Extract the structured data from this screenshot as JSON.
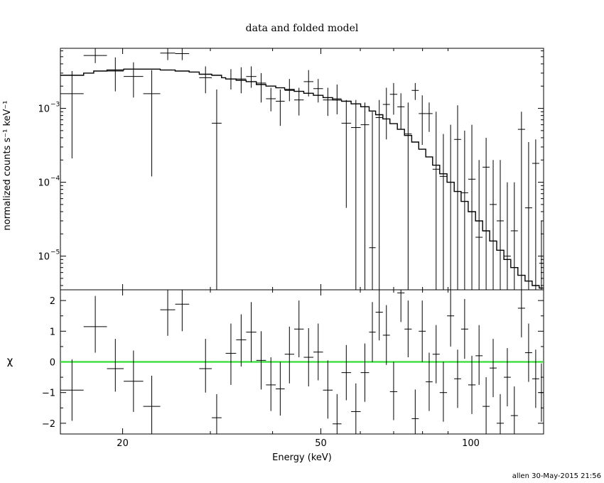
{
  "chart_data": {
    "type": "scatter",
    "title": "data and folded model",
    "xlabel": "Energy (keV)",
    "xscale": "log",
    "xlim": [
      15.0,
      140.0
    ],
    "x_ticks": [
      20,
      50,
      100
    ],
    "footer": "allen 30-May-2015 21:56",
    "panels": [
      {
        "id": "top",
        "ylabel": "normalized counts s⁻¹ keV⁻¹",
        "yscale": "log",
        "ylim": [
          3.5e-06,
          0.0065
        ],
        "y_ticks": [
          {
            "value": 0.001,
            "mantissa": "10",
            "exp": "−3"
          },
          {
            "value": 0.0001,
            "mantissa": "10",
            "exp": "−4"
          },
          {
            "value": 1e-05,
            "mantissa": "10",
            "exp": "−5"
          }
        ],
        "data_points": [
          {
            "x0": 15.0,
            "x1": 16.7,
            "y": 0.00158,
            "ylo": 0.00021,
            "yhi": 0.0032
          },
          {
            "x0": 16.7,
            "x1": 18.6,
            "y": 0.0052,
            "ylo": 0.0041,
            "yhi": 0.0065
          },
          {
            "x0": 18.6,
            "x1": 20.1,
            "y": 0.0032,
            "ylo": 0.0017,
            "yhi": 0.0049
          },
          {
            "x0": 20.1,
            "x1": 22.0,
            "y": 0.0027,
            "ylo": 0.0014,
            "yhi": 0.0042
          },
          {
            "x0": 22.0,
            "x1": 23.8,
            "y": 0.00158,
            "ylo": 0.00012,
            "yhi": 0.0033
          },
          {
            "x0": 23.8,
            "x1": 25.5,
            "y": 0.0056,
            "ylo": 0.0045,
            "yhi": 0.0065
          },
          {
            "x0": 25.5,
            "x1": 27.2,
            "y": 0.0055,
            "ylo": 0.0045,
            "yhi": 0.0065
          },
          {
            "x0": 28.5,
            "x1": 30.2,
            "y": 0.0026,
            "ylo": 0.0016,
            "yhi": 0.0037
          },
          {
            "x0": 30.2,
            "x1": 31.6,
            "y": 0.00063,
            "ylo": 3.5e-06,
            "yhi": 0.0018
          },
          {
            "x0": 32.2,
            "x1": 33.8,
            "y": 0.0025,
            "ylo": 0.0018,
            "yhi": 0.0034
          },
          {
            "x0": 33.8,
            "x1": 35.4,
            "y": 0.0025,
            "ylo": 0.0016,
            "yhi": 0.0036
          },
          {
            "x0": 35.4,
            "x1": 37.1,
            "y": 0.0027,
            "ylo": 0.0019,
            "yhi": 0.0037
          },
          {
            "x0": 37.1,
            "x1": 38.8,
            "y": 0.0022,
            "ylo": 0.0012,
            "yhi": 0.003
          },
          {
            "x0": 38.8,
            "x1": 40.6,
            "y": 0.00135,
            "ylo": 0.00091,
            "yhi": 0.0019
          },
          {
            "x0": 40.6,
            "x1": 42.3,
            "y": 0.00125,
            "ylo": 0.00058,
            "yhi": 0.0018
          },
          {
            "x0": 42.3,
            "x1": 44.2,
            "y": 0.00175,
            "ylo": 0.00125,
            "yhi": 0.0025
          },
          {
            "x0": 44.2,
            "x1": 46.2,
            "y": 0.0013,
            "ylo": 0.0008,
            "yhi": 0.0019
          },
          {
            "x0": 46.2,
            "x1": 48.3,
            "y": 0.0023,
            "ylo": 0.00145,
            "yhi": 0.0033
          },
          {
            "x0": 48.3,
            "x1": 50.5,
            "y": 0.00185,
            "ylo": 0.0012,
            "yhi": 0.0025
          },
          {
            "x0": 50.5,
            "x1": 52.8,
            "y": 0.0013,
            "ylo": 0.00079,
            "yhi": 0.0019
          },
          {
            "x0": 52.8,
            "x1": 55.0,
            "y": 0.00135,
            "ylo": 0.00083,
            "yhi": 0.0021
          },
          {
            "x0": 55.0,
            "x1": 57.5,
            "y": 0.00063,
            "ylo": 4.5e-05,
            "yhi": 0.0013
          },
          {
            "x0": 57.5,
            "x1": 60.1,
            "y": 0.00055,
            "ylo": 3.5e-06,
            "yhi": 0.0013
          },
          {
            "x0": 60.1,
            "x1": 62.5,
            "y": 0.0006,
            "ylo": 3.5e-06,
            "yhi": 0.0012
          },
          {
            "x0": 62.5,
            "x1": 64.4,
            "y": 1.3e-05,
            "ylo": 3.5e-06,
            "yhi": 0.0009
          },
          {
            "x0": 64.4,
            "x1": 66.6,
            "y": 0.00075,
            "ylo": 3.5e-06,
            "yhi": 0.0013
          },
          {
            "x0": 66.6,
            "x1": 68.8,
            "y": 0.00113,
            "ylo": 0.00038,
            "yhi": 0.0019
          },
          {
            "x0": 68.8,
            "x1": 71.2,
            "y": 0.00155,
            "ylo": 0.00082,
            "yhi": 0.0022
          },
          {
            "x0": 71.2,
            "x1": 73.6,
            "y": 0.00105,
            "ylo": 0.00052,
            "yhi": 0.0016
          },
          {
            "x0": 73.6,
            "x1": 76.1,
            "y": 0.00045,
            "ylo": 3.5e-06,
            "yhi": 0.0012
          },
          {
            "x0": 76.1,
            "x1": 78.6,
            "y": 0.00175,
            "ylo": 0.0013,
            "yhi": 0.0022
          },
          {
            "x0": 78.6,
            "x1": 81.2,
            "y": 0.00085,
            "ylo": 0.00032,
            "yhi": 0.0015
          },
          {
            "x0": 81.2,
            "x1": 83.8,
            "y": 0.00085,
            "ylo": 0.00048,
            "yhi": 0.0012
          },
          {
            "x0": 83.8,
            "x1": 86.6,
            "y": 0.00015,
            "ylo": 3.5e-06,
            "yhi": 0.0009
          },
          {
            "x0": 86.6,
            "x1": 89.6,
            "y": 0.00012,
            "ylo": 3.5e-06,
            "yhi": 0.00045
          },
          {
            "x0": 89.6,
            "x1": 92.6,
            "y": 0.0001,
            "ylo": 3.5e-06,
            "yhi": 0.0006
          },
          {
            "x0": 92.6,
            "x1": 95.6,
            "y": 0.00038,
            "ylo": 3.5e-06,
            "yhi": 0.0011
          },
          {
            "x0": 95.6,
            "x1": 98.8,
            "y": 7.2e-05,
            "ylo": 3.5e-06,
            "yhi": 0.0005
          },
          {
            "x0": 98.8,
            "x1": 102.2,
            "y": 0.00011,
            "ylo": 3.5e-06,
            "yhi": 0.0006
          },
          {
            "x0": 102.2,
            "x1": 105.6,
            "y": 1.8e-05,
            "ylo": 3.5e-06,
            "yhi": 0.0002
          },
          {
            "x0": 105.6,
            "x1": 109.1,
            "y": 0.00016,
            "ylo": 3.5e-06,
            "yhi": 0.0004
          },
          {
            "x0": 109.1,
            "x1": 112.7,
            "y": 5e-05,
            "ylo": 3.5e-06,
            "yhi": 0.0002
          },
          {
            "x0": 112.7,
            "x1": 116.5,
            "y": 3e-05,
            "ylo": 3.5e-06,
            "yhi": 0.0002
          },
          {
            "x0": 116.5,
            "x1": 120.3,
            "y": 1e-05,
            "ylo": 3.5e-06,
            "yhi": 0.0001
          },
          {
            "x0": 120.3,
            "x1": 124.3,
            "y": 2.2e-05,
            "ylo": 3.5e-06,
            "yhi": 0.0001
          },
          {
            "x0": 124.3,
            "x1": 128.5,
            "y": 0.00052,
            "ylo": 3.5e-06,
            "yhi": 0.0009
          },
          {
            "x0": 128.5,
            "x1": 132.8,
            "y": 4.5e-05,
            "ylo": 3.5e-06,
            "yhi": 0.00035
          },
          {
            "x0": 132.8,
            "x1": 137.2,
            "y": 0.00018,
            "ylo": 3.5e-06,
            "yhi": 0.00038
          },
          {
            "x0": 137.2,
            "x1": 140.0,
            "y": 8e-06,
            "ylo": 3.5e-06,
            "yhi": 3e-05
          }
        ],
        "model_x": [
          15.0,
          16.7,
          17.5,
          18.6,
          20.1,
          22.0,
          23.8,
          25.5,
          27.2,
          28.5,
          30.2,
          31.6,
          32.2,
          33.8,
          35.4,
          37.1,
          38.8,
          40.6,
          42.3,
          44.2,
          46.2,
          48.3,
          50.5,
          52.8,
          55.0,
          57.5,
          60.1,
          62.5,
          64.4,
          66.6,
          68.8,
          71.2,
          73.6,
          76.1,
          78.6,
          81.2,
          83.8,
          86.6,
          89.6,
          92.6,
          95.6,
          98.8,
          102.2,
          105.6,
          109.1,
          112.7,
          116.5,
          120.3,
          124.3,
          128.5,
          132.8,
          137.2,
          140.0
        ],
        "model_y": [
          0.0028,
          0.003,
          0.0032,
          0.0033,
          0.0034,
          0.0034,
          0.0033,
          0.0032,
          0.0031,
          0.0029,
          0.0028,
          0.0026,
          0.0025,
          0.0024,
          0.0023,
          0.0021,
          0.002,
          0.0019,
          0.0018,
          0.0017,
          0.0016,
          0.0015,
          0.0014,
          0.0013,
          0.00125,
          0.00115,
          0.00105,
          0.00092,
          0.00082,
          0.00072,
          0.00062,
          0.00052,
          0.00043,
          0.00035,
          0.00028,
          0.00022,
          0.00017,
          0.00013,
          0.0001,
          7.5e-05,
          5.5e-05,
          4e-05,
          3e-05,
          2.2e-05,
          1.6e-05,
          1.2e-05,
          9e-06,
          7e-06,
          5.5e-06,
          4.6e-06,
          4e-06,
          3.7e-06
        ]
      },
      {
        "id": "bottom",
        "ylabel": "χ",
        "yscale": "linear",
        "ylim": [
          -2.35,
          2.35
        ],
        "y_ticks": [
          {
            "value": 2,
            "label": "2"
          },
          {
            "value": 1,
            "label": "1"
          },
          {
            "value": 0,
            "label": "0"
          },
          {
            "value": -1,
            "label": "−1"
          },
          {
            "value": -2,
            "label": "−2"
          }
        ],
        "zero_line_color": "#33dd33",
        "residuals": [
          {
            "x0": 15.0,
            "x1": 16.7,
            "y": -0.92,
            "ylo": -1.92,
            "yhi": 0.08
          },
          {
            "x0": 16.7,
            "x1": 18.6,
            "y": 1.15,
            "ylo": 0.3,
            "yhi": 2.15
          },
          {
            "x0": 18.6,
            "x1": 20.1,
            "y": -0.22,
            "ylo": -0.97,
            "yhi": 0.75
          },
          {
            "x0": 20.1,
            "x1": 22.0,
            "y": -0.63,
            "ylo": -1.63,
            "yhi": 0.37
          },
          {
            "x0": 22.0,
            "x1": 23.8,
            "y": -1.45,
            "ylo": -2.35,
            "yhi": -0.45
          },
          {
            "x0": 23.8,
            "x1": 25.5,
            "y": 1.7,
            "ylo": 0.85,
            "yhi": 2.35
          },
          {
            "x0": 25.5,
            "x1": 27.2,
            "y": 1.88,
            "ylo": 1.0,
            "yhi": 2.35
          },
          {
            "x0": 28.5,
            "x1": 30.2,
            "y": -0.22,
            "ylo": -1.0,
            "yhi": 0.75
          },
          {
            "x0": 30.2,
            "x1": 31.6,
            "y": -1.82,
            "ylo": -2.35,
            "yhi": -1.05
          },
          {
            "x0": 32.2,
            "x1": 33.8,
            "y": 0.28,
            "ylo": -0.75,
            "yhi": 1.25
          },
          {
            "x0": 33.8,
            "x1": 35.4,
            "y": 0.72,
            "ylo": -0.15,
            "yhi": 1.55
          },
          {
            "x0": 35.4,
            "x1": 37.1,
            "y": 0.97,
            "ylo": 0.0,
            "yhi": 1.95
          },
          {
            "x0": 37.1,
            "x1": 38.8,
            "y": 0.05,
            "ylo": -0.9,
            "yhi": 1.0
          },
          {
            "x0": 38.8,
            "x1": 40.6,
            "y": -0.75,
            "ylo": -1.6,
            "yhi": 0.15
          },
          {
            "x0": 40.6,
            "x1": 42.3,
            "y": -0.88,
            "ylo": -1.75,
            "yhi": 0.0
          },
          {
            "x0": 42.3,
            "x1": 44.2,
            "y": 0.25,
            "ylo": -0.7,
            "yhi": 1.15
          },
          {
            "x0": 44.2,
            "x1": 46.2,
            "y": 1.07,
            "ylo": 0.15,
            "yhi": 2.0
          },
          {
            "x0": 46.2,
            "x1": 48.3,
            "y": 0.15,
            "ylo": -0.8,
            "yhi": 1.1
          },
          {
            "x0": 48.3,
            "x1": 50.5,
            "y": 0.32,
            "ylo": -0.6,
            "yhi": 1.25
          },
          {
            "x0": 50.5,
            "x1": 52.8,
            "y": -0.92,
            "ylo": -1.85,
            "yhi": 0.05
          },
          {
            "x0": 52.8,
            "x1": 55.0,
            "y": -2.02,
            "ylo": -2.35,
            "yhi": -1.05
          },
          {
            "x0": 55.0,
            "x1": 57.5,
            "y": -0.35,
            "ylo": -1.25,
            "yhi": 0.55
          },
          {
            "x0": 57.5,
            "x1": 60.1,
            "y": -1.62,
            "ylo": -2.35,
            "yhi": -0.7
          },
          {
            "x0": 60.1,
            "x1": 62.5,
            "y": -0.35,
            "ylo": -1.3,
            "yhi": 0.6
          },
          {
            "x0": 62.5,
            "x1": 64.4,
            "y": 0.97,
            "ylo": 0.0,
            "yhi": 1.95
          },
          {
            "x0": 64.4,
            "x1": 66.6,
            "y": 1.62,
            "ylo": 0.7,
            "yhi": 2.35
          },
          {
            "x0": 66.6,
            "x1": 68.8,
            "y": 0.87,
            "ylo": -0.1,
            "yhi": 1.85
          },
          {
            "x0": 68.8,
            "x1": 71.2,
            "y": -0.97,
            "ylo": -1.9,
            "yhi": 0.0
          },
          {
            "x0": 71.2,
            "x1": 73.6,
            "y": 2.25,
            "ylo": 1.3,
            "yhi": 2.35
          },
          {
            "x0": 73.6,
            "x1": 76.1,
            "y": 1.07,
            "ylo": 0.15,
            "yhi": 2.0
          },
          {
            "x0": 76.1,
            "x1": 78.6,
            "y": -1.85,
            "ylo": -2.35,
            "yhi": -0.9
          },
          {
            "x0": 78.6,
            "x1": 81.2,
            "y": 1.0,
            "ylo": 0.0,
            "yhi": 2.0
          },
          {
            "x0": 81.2,
            "x1": 83.8,
            "y": -0.65,
            "ylo": -1.6,
            "yhi": 0.3
          },
          {
            "x0": 83.8,
            "x1": 86.6,
            "y": 0.25,
            "ylo": -0.7,
            "yhi": 1.2
          },
          {
            "x0": 86.6,
            "x1": 89.6,
            "y": -1.0,
            "ylo": -1.95,
            "yhi": 0.0
          },
          {
            "x0": 89.6,
            "x1": 92.6,
            "y": 1.5,
            "ylo": 0.5,
            "yhi": 2.35
          },
          {
            "x0": 92.6,
            "x1": 95.6,
            "y": -0.55,
            "ylo": -1.5,
            "yhi": 0.4
          },
          {
            "x0": 95.6,
            "x1": 98.8,
            "y": 1.07,
            "ylo": 0.1,
            "yhi": 2.05
          },
          {
            "x0": 98.8,
            "x1": 102.2,
            "y": -0.75,
            "ylo": -1.7,
            "yhi": 0.2
          },
          {
            "x0": 102.2,
            "x1": 105.6,
            "y": 0.2,
            "ylo": -0.75,
            "yhi": 1.2
          },
          {
            "x0": 105.6,
            "x1": 109.1,
            "y": -1.45,
            "ylo": -2.35,
            "yhi": -0.5
          },
          {
            "x0": 109.1,
            "x1": 112.7,
            "y": -0.2,
            "ylo": -1.15,
            "yhi": 0.75
          },
          {
            "x0": 112.7,
            "x1": 116.5,
            "y": -2.0,
            "ylo": -2.35,
            "yhi": -1.05
          },
          {
            "x0": 116.5,
            "x1": 120.3,
            "y": -0.5,
            "ylo": -1.45,
            "yhi": 0.45
          },
          {
            "x0": 120.3,
            "x1": 124.3,
            "y": -1.75,
            "ylo": -2.35,
            "yhi": -0.8
          },
          {
            "x0": 124.3,
            "x1": 128.5,
            "y": 1.75,
            "ylo": 0.8,
            "yhi": 2.35
          },
          {
            "x0": 128.5,
            "x1": 132.8,
            "y": 0.3,
            "ylo": -0.65,
            "yhi": 1.25
          },
          {
            "x0": 132.8,
            "x1": 137.2,
            "y": -0.55,
            "ylo": -1.5,
            "yhi": 0.4
          },
          {
            "x0": 137.2,
            "x1": 140.0,
            "y": -1.0,
            "ylo": -1.95,
            "yhi": -0.05
          }
        ]
      }
    ]
  }
}
